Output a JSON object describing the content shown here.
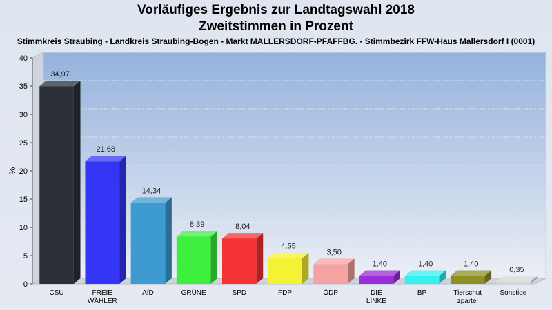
{
  "title": "Vorläufiges Ergebnis zur Landtagswahl 2018",
  "subtitle": "Zweitstimmen in Prozent",
  "subsubtitle": "Stimmkreis Straubing - Landkreis Straubing-Bogen - Markt MALLERSDORF-PFAFFBG. - Stimmbezirk FFW-Haus Mallersdorf I (0001)",
  "chart_data": {
    "type": "bar",
    "title": "Vorläufiges Ergebnis zur Landtagswahl 2018",
    "xlabel": "",
    "ylabel": "%",
    "ylim": [
      0,
      40
    ],
    "yticks": [
      0,
      5,
      10,
      15,
      20,
      25,
      30,
      35,
      40
    ],
    "grid": true,
    "categories": [
      "CSU",
      "FREIE WÄHLER",
      "AfD",
      "GRÜNE",
      "SPD",
      "FDP",
      "ÖDP",
      "DIE LINKE",
      "BP",
      "Tierschutzpartei",
      "Sonstige"
    ],
    "category_labels": [
      [
        "CSU"
      ],
      [
        "FREIE",
        "WÄHLER"
      ],
      [
        "AfD"
      ],
      [
        "GRÜNE"
      ],
      [
        "SPD"
      ],
      [
        "FDP"
      ],
      [
        "ÖDP"
      ],
      [
        "DIE",
        "LINKE"
      ],
      [
        "BP"
      ],
      [
        "Tierschut",
        "zpartei"
      ],
      [
        "Sonstige"
      ]
    ],
    "values": [
      34.97,
      21.68,
      14.34,
      8.39,
      8.04,
      4.55,
      3.5,
      1.4,
      1.4,
      1.4,
      0.35
    ],
    "value_labels": [
      "34,97",
      "21,68",
      "14,34",
      "8,39",
      "8,04",
      "4,55",
      "3,50",
      "1,40",
      "1,40",
      "1,40",
      "0,35"
    ],
    "colors": [
      "#2b2f38",
      "#3535f5",
      "#3d9bd2",
      "#3ef03e",
      "#f43434",
      "#f4f234",
      "#f5a2a2",
      "#9b2ed6",
      "#36f0f0",
      "#8f8f25",
      "#d5d5d5"
    ]
  }
}
